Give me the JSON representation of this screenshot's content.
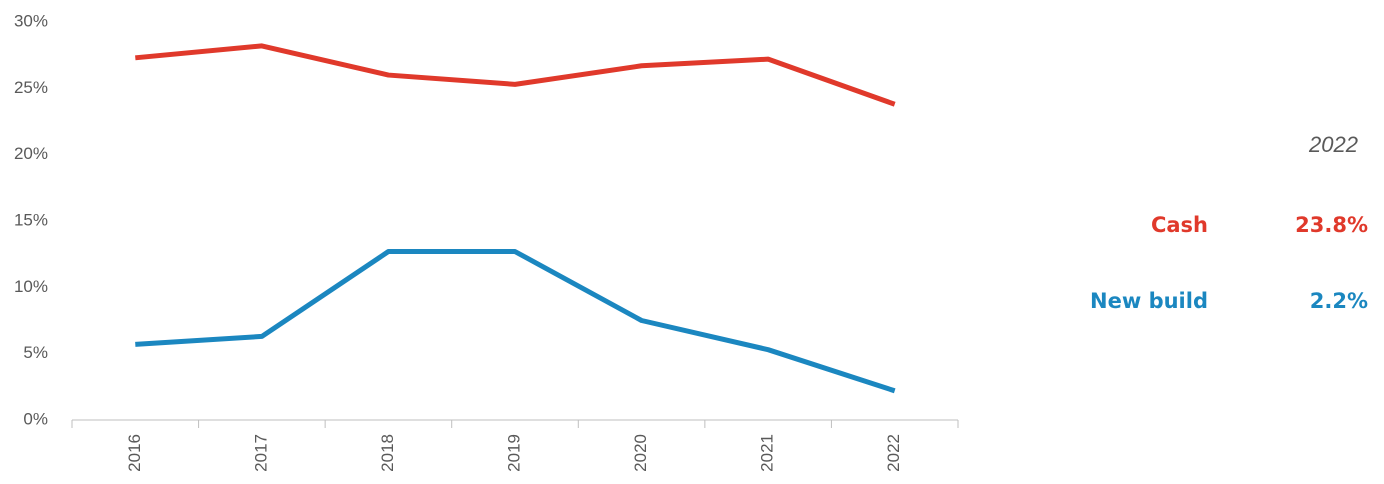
{
  "chart_data": {
    "type": "line",
    "categories": [
      "2016",
      "2017",
      "2018",
      "2019",
      "2020",
      "2021",
      "2022"
    ],
    "series": [
      {
        "name": "Cash",
        "color": "#e0392b",
        "values": [
          27.3,
          28.2,
          26.0,
          25.3,
          26.7,
          27.2,
          23.8
        ],
        "value_labels": [
          null,
          null,
          null,
          null,
          null,
          null,
          "23.8%"
        ]
      },
      {
        "name": "New build",
        "color": "#1b87c0",
        "values": [
          5.7,
          6.3,
          12.7,
          12.7,
          7.5,
          5.3,
          2.2
        ],
        "value_labels": [
          null,
          null,
          null,
          null,
          null,
          null,
          "2.2%"
        ]
      }
    ],
    "ylim": [
      0,
      30
    ],
    "yticks": [
      {
        "value": 0,
        "label": "0%"
      },
      {
        "value": 5,
        "label": "5%"
      },
      {
        "value": 10,
        "label": "10%"
      },
      {
        "value": 15,
        "label": "15%"
      },
      {
        "value": 20,
        "label": "20%"
      },
      {
        "value": 25,
        "label": "25%"
      },
      {
        "value": 30,
        "label": "30%"
      }
    ],
    "grid": false
  }
}
